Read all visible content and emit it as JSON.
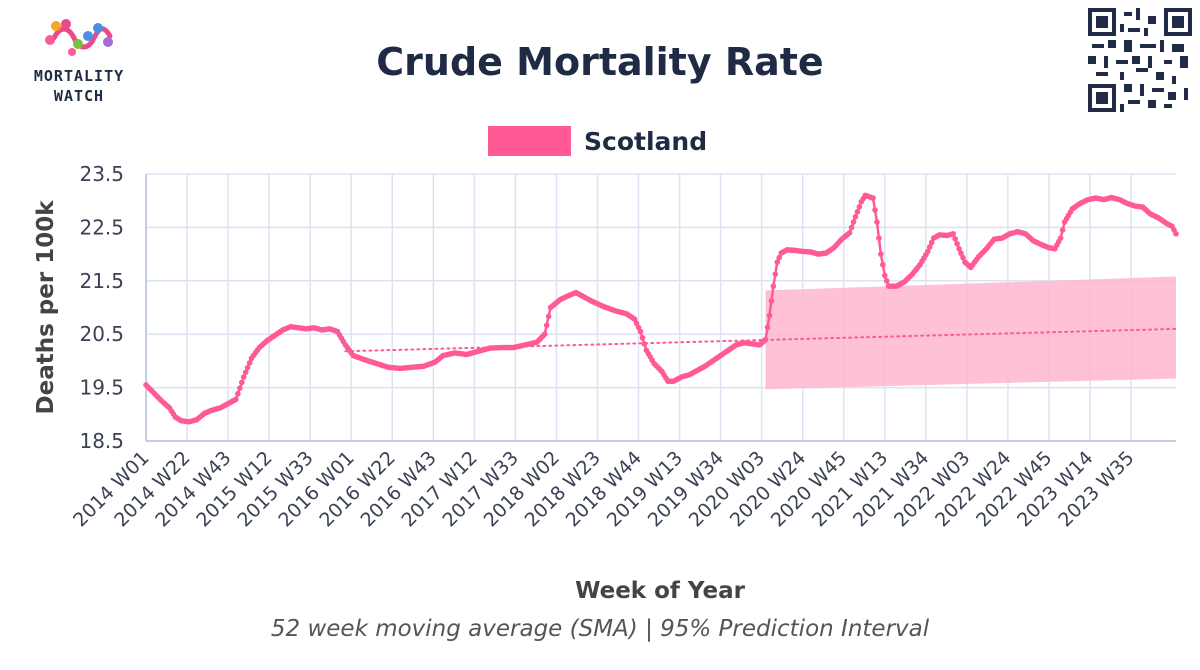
{
  "logo": {
    "line1": "MORTALITY",
    "line2": "WATCH"
  },
  "chart_data": {
    "type": "line",
    "title": "Crude Mortality Rate",
    "subtitle": "52 week moving average (SMA) | 95% Prediction Interval",
    "xlabel": "Week of Year",
    "ylabel": "Deaths per 100k",
    "ylim": [
      18.5,
      23.5
    ],
    "yticks": [
      "18.5",
      "19.5",
      "20.5",
      "21.5",
      "22.5",
      "23.5"
    ],
    "xticks": [
      "2014 W01",
      "2014 W22",
      "2014 W43",
      "2015 W12",
      "2015 W33",
      "2016 W01",
      "2016 W22",
      "2016 W43",
      "2017 W12",
      "2017 W33",
      "2018 W02",
      "2018 W23",
      "2018 W44",
      "2019 W13",
      "2019 W34",
      "2020 W03",
      "2020 W24",
      "2020 W45",
      "2021 W13",
      "2021 W34",
      "2022 W03",
      "2022 W24",
      "2022 W45",
      "2023 W14",
      "2023 W35"
    ],
    "legend": {
      "position": "top",
      "entries": [
        "Scotland"
      ]
    },
    "grid": true,
    "colors": {
      "series": "#ff5a96",
      "band": "#ffb6cf",
      "grid": "#dde3f3",
      "axis": "#c5cce6"
    },
    "series": [
      {
        "name": "Scotland",
        "anchors": [
          [
            0,
            19.55
          ],
          [
            4,
            19.4
          ],
          [
            8,
            19.25
          ],
          [
            12,
            19.12
          ],
          [
            15,
            18.95
          ],
          [
            18,
            18.88
          ],
          [
            22,
            18.86
          ],
          [
            26,
            18.9
          ],
          [
            30,
            19.02
          ],
          [
            34,
            19.08
          ],
          [
            38,
            19.12
          ],
          [
            42,
            19.2
          ],
          [
            46,
            19.28
          ],
          [
            50,
            19.7
          ],
          [
            54,
            20.05
          ],
          [
            58,
            20.25
          ],
          [
            62,
            20.38
          ],
          [
            66,
            20.48
          ],
          [
            70,
            20.58
          ],
          [
            74,
            20.64
          ],
          [
            78,
            20.62
          ],
          [
            82,
            20.6
          ],
          [
            86,
            20.62
          ],
          [
            90,
            20.58
          ],
          [
            94,
            20.6
          ],
          [
            98,
            20.55
          ],
          [
            102,
            20.3
          ],
          [
            106,
            20.1
          ],
          [
            112,
            20.02
          ],
          [
            118,
            19.95
          ],
          [
            124,
            19.88
          ],
          [
            130,
            19.86
          ],
          [
            136,
            19.88
          ],
          [
            142,
            19.9
          ],
          [
            148,
            19.98
          ],
          [
            152,
            20.1
          ],
          [
            158,
            20.15
          ],
          [
            164,
            20.12
          ],
          [
            170,
            20.18
          ],
          [
            176,
            20.24
          ],
          [
            182,
            20.25
          ],
          [
            188,
            20.25
          ],
          [
            194,
            20.3
          ],
          [
            200,
            20.35
          ],
          [
            204,
            20.5
          ],
          [
            207,
            21.0
          ],
          [
            212,
            21.15
          ],
          [
            216,
            21.22
          ],
          [
            220,
            21.28
          ],
          [
            224,
            21.2
          ],
          [
            228,
            21.12
          ],
          [
            234,
            21.02
          ],
          [
            240,
            20.94
          ],
          [
            246,
            20.88
          ],
          [
            250,
            20.78
          ],
          [
            253,
            20.55
          ],
          [
            256,
            20.2
          ],
          [
            260,
            19.95
          ],
          [
            264,
            19.8
          ],
          [
            267,
            19.62
          ],
          [
            270,
            19.62
          ],
          [
            274,
            19.7
          ],
          [
            278,
            19.74
          ],
          [
            282,
            19.82
          ],
          [
            286,
            19.9
          ],
          [
            290,
            20.0
          ],
          [
            294,
            20.1
          ],
          [
            298,
            20.2
          ],
          [
            302,
            20.3
          ],
          [
            306,
            20.34
          ],
          [
            310,
            20.32
          ],
          [
            314,
            20.3
          ],
          [
            317,
            20.4
          ],
          [
            319,
            20.85
          ],
          [
            321,
            21.4
          ],
          [
            323,
            21.85
          ],
          [
            325,
            22.02
          ],
          [
            328,
            22.08
          ],
          [
            332,
            22.07
          ],
          [
            336,
            22.05
          ],
          [
            340,
            22.04
          ],
          [
            344,
            22.0
          ],
          [
            348,
            22.02
          ],
          [
            352,
            22.12
          ],
          [
            356,
            22.28
          ],
          [
            360,
            22.4
          ],
          [
            363,
            22.7
          ],
          [
            366,
            22.98
          ],
          [
            368,
            23.1
          ],
          [
            372,
            23.05
          ],
          [
            374,
            22.6
          ],
          [
            376,
            22.0
          ],
          [
            378,
            21.6
          ],
          [
            380,
            21.4
          ],
          [
            384,
            21.4
          ],
          [
            388,
            21.48
          ],
          [
            392,
            21.62
          ],
          [
            396,
            21.8
          ],
          [
            400,
            22.05
          ],
          [
            403,
            22.3
          ],
          [
            406,
            22.36
          ],
          [
            410,
            22.35
          ],
          [
            413,
            22.38
          ],
          [
            416,
            22.1
          ],
          [
            419,
            21.85
          ],
          [
            422,
            21.75
          ],
          [
            426,
            21.95
          ],
          [
            430,
            22.1
          ],
          [
            434,
            22.28
          ],
          [
            438,
            22.3
          ],
          [
            442,
            22.38
          ],
          [
            446,
            22.42
          ],
          [
            450,
            22.38
          ],
          [
            454,
            22.25
          ],
          [
            458,
            22.18
          ],
          [
            462,
            22.12
          ],
          [
            465,
            22.1
          ],
          [
            468,
            22.3
          ],
          [
            470,
            22.6
          ],
          [
            474,
            22.85
          ],
          [
            478,
            22.95
          ],
          [
            482,
            23.02
          ],
          [
            486,
            23.05
          ],
          [
            490,
            23.02
          ],
          [
            494,
            23.06
          ],
          [
            498,
            23.02
          ],
          [
            502,
            22.95
          ],
          [
            506,
            22.9
          ],
          [
            510,
            22.88
          ],
          [
            514,
            22.75
          ],
          [
            518,
            22.68
          ],
          [
            522,
            22.58
          ],
          [
            525,
            22.52
          ],
          [
            527,
            22.38
          ]
        ]
      }
    ],
    "baseline_trend": {
      "style": "dotted",
      "from": [
        102,
        20.18
      ],
      "to": [
        527,
        20.6
      ]
    },
    "prediction_interval": {
      "from_index": 317,
      "to_index": 527,
      "lower": [
        19.47,
        19.67
      ],
      "upper": [
        21.32,
        21.58
      ]
    }
  }
}
